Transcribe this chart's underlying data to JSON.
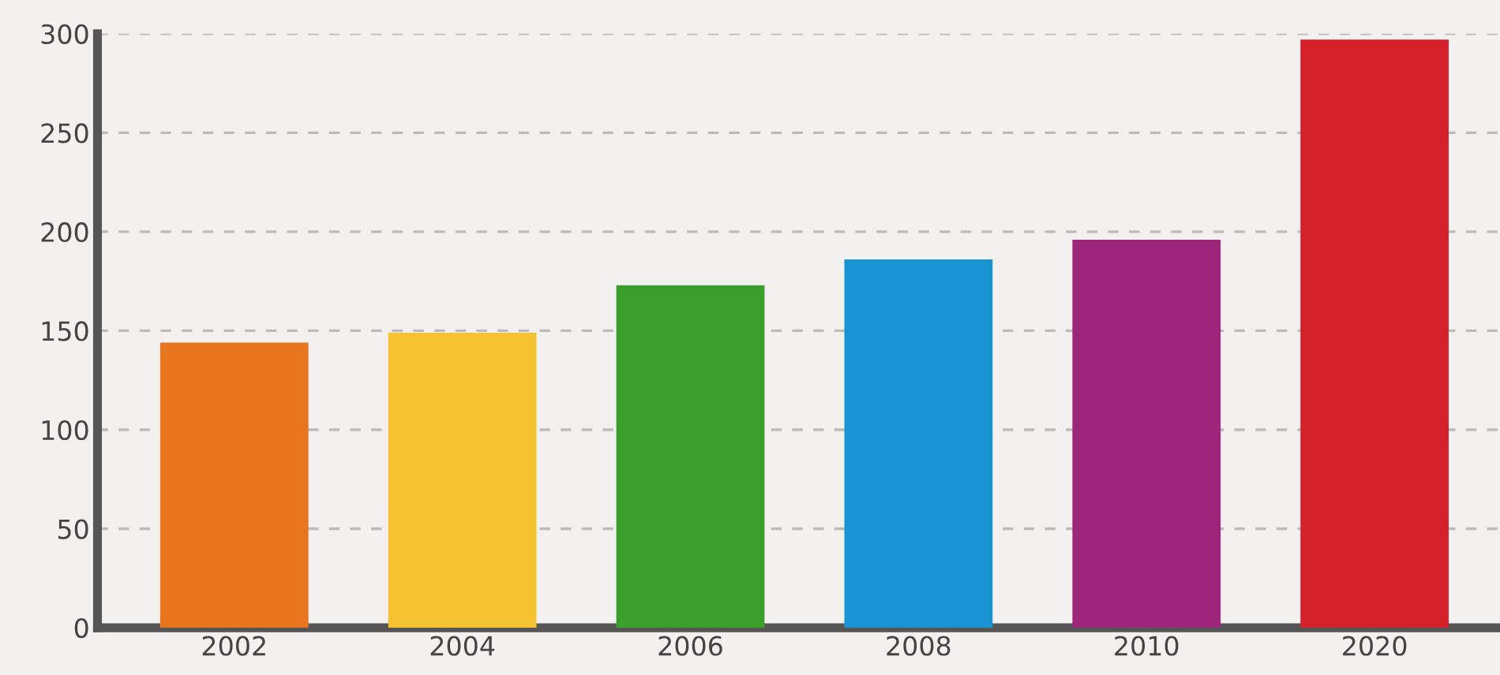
{
  "chart_data": {
    "type": "bar",
    "categories": [
      "2002",
      "2004",
      "2006",
      "2008",
      "2010",
      "2020"
    ],
    "values": [
      144,
      149,
      173,
      186,
      196,
      297
    ],
    "colors": [
      "#e8761f",
      "#f5c232",
      "#3a9e2a",
      "#1a93d2",
      "#9c2679",
      "#d4212a"
    ],
    "ylim": [
      0,
      300
    ],
    "yticks": [
      0,
      50,
      100,
      150,
      200,
      250,
      300
    ],
    "grid": "y"
  }
}
